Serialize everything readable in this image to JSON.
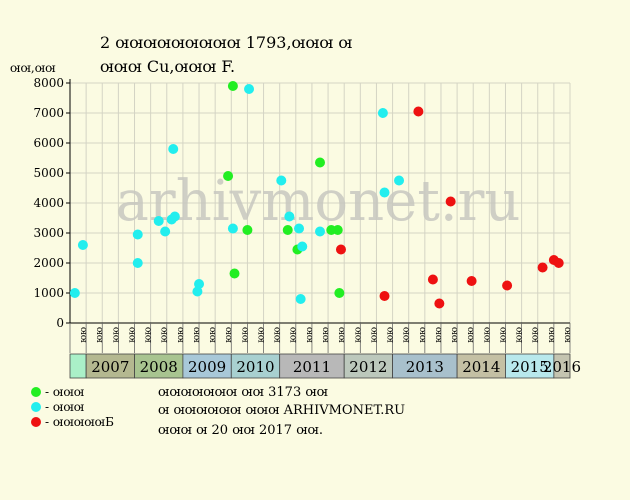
{
  "chart_data": {
    "type": "scatter",
    "title": "2 ꙕꙕꙕꙕꙕꙕꙕꙕꙕ 1793,ꙕꙕꙕ ꙕ",
    "subtitle": "ꙕꙕꙕ Cu,ꙕꙕꙕ F.",
    "ylabel": "ꙕꙕ,ꙕꙕ",
    "ylim": [
      0,
      8000
    ],
    "yticks": [
      0,
      1000,
      2000,
      3000,
      4000,
      5000,
      6000,
      7000,
      8000
    ],
    "grid": true,
    "categories": [
      "ꙕꙕ",
      "ꙕꙕ",
      "ꙕꙕ",
      "ꙕꙕ",
      "ꙕꙕ",
      "ꙕꙕ",
      "ꙕꙕ",
      "ꙕꙕ",
      "ꙕꙕ",
      "ꙕꙕ",
      "ꙕꙕ",
      "ꙕꙕ",
      "ꙕꙕ",
      "ꙕꙕ",
      "ꙕꙕ",
      "ꙕꙕ",
      "ꙕꙕ",
      "ꙕꙕ",
      "ꙕꙕ",
      "ꙕꙕ",
      "ꙕꙕ",
      "ꙕꙕ",
      "ꙕꙕ",
      "ꙕꙕ",
      "ꙕꙕ",
      "ꙕꙕ",
      "ꙕꙕ",
      "ꙕꙕ",
      "ꙕꙕ",
      "ꙕꙕ",
      "ꙕꙕ"
    ],
    "year_groups": [
      {
        "label": "",
        "color": "#aaf0c8"
      },
      {
        "label": "2007",
        "color": "#b4b890"
      },
      {
        "label": "2008",
        "color": "#a8c490"
      },
      {
        "label": "2009",
        "color": "#a8c8d8"
      },
      {
        "label": "2010",
        "color": "#a8d0d0"
      },
      {
        "label": "2011",
        "color": "#b8b8b8"
      },
      {
        "label": "2012",
        "color": "#bcc8bc"
      },
      {
        "label": "2013",
        "color": "#a8c0cc"
      },
      {
        "label": "2014",
        "color": "#c4c0a4"
      },
      {
        "label": "2015",
        "color": "#b8e8ec"
      },
      {
        "label": "2016",
        "color": "#c4c4b0"
      }
    ],
    "series": [
      {
        "name": "ꙕꙕꙕ",
        "color": "#22ee22",
        "points": [
          {
            "x": 9.8,
            "y": 4900
          },
          {
            "x": 10.1,
            "y": 7900
          },
          {
            "x": 10.2,
            "y": 1650
          },
          {
            "x": 11.0,
            "y": 3100
          },
          {
            "x": 13.5,
            "y": 3100
          },
          {
            "x": 14.1,
            "y": 2450
          },
          {
            "x": 15.5,
            "y": 5350
          },
          {
            "x": 16.2,
            "y": 3100
          },
          {
            "x": 16.6,
            "y": 3100
          },
          {
            "x": 16.7,
            "y": 1000
          }
        ]
      },
      {
        "name": "ꙕꙕꙕ",
        "color": "#22eeee",
        "points": [
          {
            "x": 0.3,
            "y": 1000
          },
          {
            "x": 0.8,
            "y": 2600
          },
          {
            "x": 4.2,
            "y": 2950
          },
          {
            "x": 4.2,
            "y": 2000
          },
          {
            "x": 5.5,
            "y": 3400
          },
          {
            "x": 5.9,
            "y": 3050
          },
          {
            "x": 6.3,
            "y": 3450
          },
          {
            "x": 6.4,
            "y": 5800
          },
          {
            "x": 6.5,
            "y": 3550
          },
          {
            "x": 7.9,
            "y": 1050
          },
          {
            "x": 8.0,
            "y": 1300
          },
          {
            "x": 10.1,
            "y": 3150
          },
          {
            "x": 11.1,
            "y": 7800
          },
          {
            "x": 13.1,
            "y": 4750
          },
          {
            "x": 13.6,
            "y": 3550
          },
          {
            "x": 14.2,
            "y": 3150
          },
          {
            "x": 14.3,
            "y": 800
          },
          {
            "x": 14.4,
            "y": 2550
          },
          {
            "x": 15.5,
            "y": 3050
          },
          {
            "x": 19.4,
            "y": 7000
          },
          {
            "x": 19.5,
            "y": 4350
          },
          {
            "x": 20.4,
            "y": 4750
          }
        ]
      },
      {
        "name": "ꙕꙕꙕꙕꙕБ",
        "color": "#ee1111",
        "points": [
          {
            "x": 16.8,
            "y": 2450
          },
          {
            "x": 19.5,
            "y": 900
          },
          {
            "x": 21.6,
            "y": 7050
          },
          {
            "x": 22.5,
            "y": 1450
          },
          {
            "x": 22.9,
            "y": 650
          },
          {
            "x": 23.6,
            "y": 4050
          },
          {
            "x": 24.9,
            "y": 1400
          },
          {
            "x": 27.1,
            "y": 1250
          },
          {
            "x": 29.3,
            "y": 1850
          },
          {
            "x": 30.0,
            "y": 2100
          },
          {
            "x": 30.3,
            "y": 2000
          }
        ]
      }
    ],
    "watermark": "arhivmonet.ru"
  },
  "notes": {
    "line1": "ꙕꙕꙕꙕꙕꙕꙕ ꙕꙕ 3173 ꙕꙕ",
    "line2": "ꙕ ꙕꙕꙕꙕꙕꙕ ꙕꙕꙕ ARHIVMONET.RU",
    "line3": "ꙕꙕꙕ ꙕ 20 ꙕꙕ 2017 ꙕꙕ."
  },
  "legend_prefix": "- "
}
